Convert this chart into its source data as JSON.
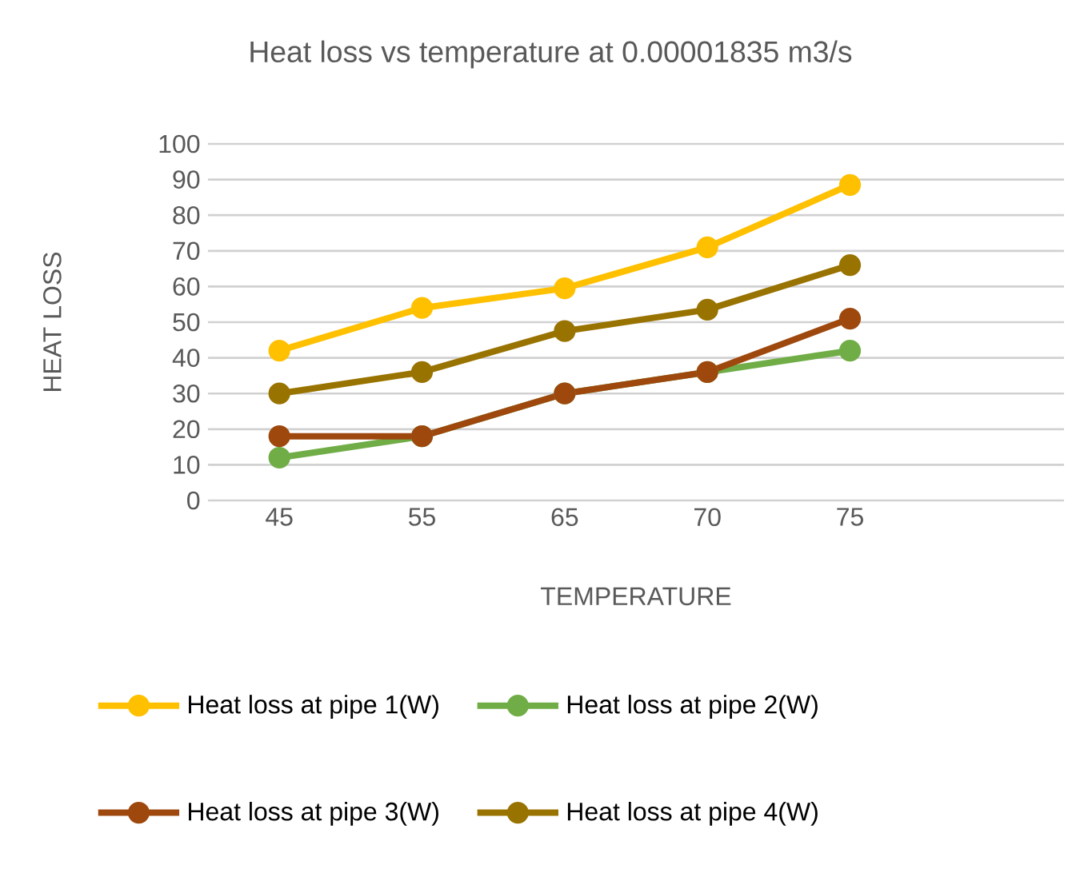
{
  "chart_data": {
    "type": "line",
    "title": "Heat loss vs temperature at 0.00001835 m3/s",
    "xlabel": "TEMPERATURE",
    "ylabel": "HEAT LOSS",
    "categories": [
      "45",
      "55",
      "65",
      "70",
      "75",
      null
    ],
    "series": [
      {
        "name": "Heat loss at pipe 1(W)",
        "color": "#ffc000",
        "values": [
          42,
          54,
          59.5,
          71,
          88.5,
          null
        ]
      },
      {
        "name": "Heat loss at pipe 2(W)",
        "color": "#70ad47",
        "values": [
          12,
          18,
          30,
          36,
          42,
          null
        ]
      },
      {
        "name": "Heat loss at pipe 3(W)",
        "color": "#9e480e",
        "values": [
          18,
          18,
          30,
          36,
          51,
          null
        ]
      },
      {
        "name": "Heat loss at pipe 4(W)",
        "color": "#997300",
        "values": [
          30,
          36,
          47.5,
          53.5,
          66,
          null
        ]
      }
    ],
    "ylim": [
      0,
      100
    ],
    "yticks": [
      0,
      10,
      20,
      30,
      40,
      50,
      60,
      70,
      80,
      90,
      100
    ],
    "grid": "y",
    "legend": "bottom",
    "marker": "circle",
    "line_style": "solid"
  }
}
